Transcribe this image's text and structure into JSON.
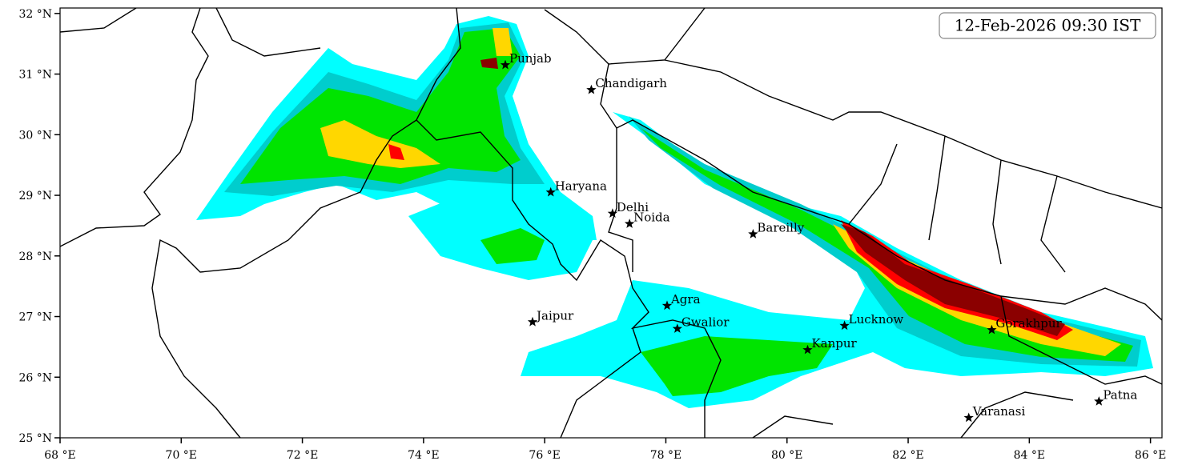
{
  "map": {
    "timestamp": "12-Feb-2026 09:30 IST",
    "xlim": [
      68,
      86.19
    ],
    "ylim": [
      25,
      32.09
    ],
    "xticks": [
      {
        "value": 68,
        "label": "68 °E"
      },
      {
        "value": 70,
        "label": "70 °E"
      },
      {
        "value": 72,
        "label": "72 °E"
      },
      {
        "value": 74,
        "label": "74 °E"
      },
      {
        "value": 76,
        "label": "76 °E"
      },
      {
        "value": 78,
        "label": "78 °E"
      },
      {
        "value": 80,
        "label": "80 °E"
      },
      {
        "value": 82,
        "label": "82 °E"
      },
      {
        "value": 84,
        "label": "84 °E"
      },
      {
        "value": 86,
        "label": "86 °E"
      }
    ],
    "yticks": [
      {
        "value": 25,
        "label": "25 °N"
      },
      {
        "value": 26,
        "label": "26 °N"
      },
      {
        "value": 27,
        "label": "27 °N"
      },
      {
        "value": 28,
        "label": "28 °N"
      },
      {
        "value": 29,
        "label": "29 °N"
      },
      {
        "value": 30,
        "label": "30 °N"
      },
      {
        "value": 31,
        "label": "31 °N"
      },
      {
        "value": 32,
        "label": "32 °N"
      }
    ],
    "cities": [
      {
        "name": "Punjab",
        "lon": 75.35,
        "lat": 31.15
      },
      {
        "name": "Chandigarh",
        "lon": 76.77,
        "lat": 30.74
      },
      {
        "name": "Haryana",
        "lon": 76.1,
        "lat": 29.05
      },
      {
        "name": "Delhi",
        "lon": 77.12,
        "lat": 28.7
      },
      {
        "name": "Noida",
        "lon": 77.4,
        "lat": 28.53
      },
      {
        "name": "Bareilly",
        "lon": 79.44,
        "lat": 28.36
      },
      {
        "name": "Jaipur",
        "lon": 75.8,
        "lat": 26.91
      },
      {
        "name": "Agra",
        "lon": 78.02,
        "lat": 27.18
      },
      {
        "name": "Gwalior",
        "lon": 78.19,
        "lat": 26.8
      },
      {
        "name": "Lucknow",
        "lon": 80.95,
        "lat": 26.85
      },
      {
        "name": "Kanpur",
        "lon": 80.34,
        "lat": 26.45
      },
      {
        "name": "Gorakhpur",
        "lon": 83.38,
        "lat": 26.78
      },
      {
        "name": "Varanasi",
        "lon": 83.0,
        "lat": 25.33
      },
      {
        "name": "Patna",
        "lon": 85.15,
        "lat": 25.6
      }
    ]
  }
}
